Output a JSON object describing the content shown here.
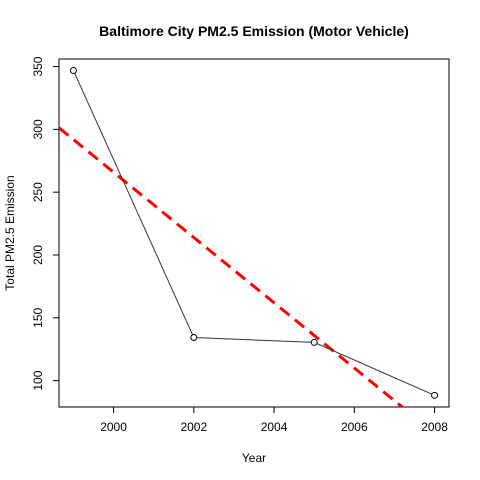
{
  "chart_data": {
    "type": "line",
    "title": "Baltimore City PM2.5 Emission (Motor Vehicle)",
    "xlabel": "Year",
    "ylabel": "Total PM2.5 Emission",
    "x": [
      1999,
      2002,
      2005,
      2008
    ],
    "series": [
      {
        "values": [
          346.8,
          134.3,
          130.4,
          88.3
        ],
        "color": "#333333",
        "marker": "circle"
      }
    ],
    "trend_line": {
      "type": "linear-fit",
      "color": "#ff0000",
      "style": "dashed"
    },
    "xlim": [
      1998.64,
      2008.36
    ],
    "ylim": [
      79,
      356
    ],
    "xticks": [
      "2000",
      "2002",
      "2004",
      "2006",
      "2008"
    ],
    "yticks": [
      "100",
      "150",
      "200",
      "250",
      "300",
      "350"
    ],
    "grid": false
  }
}
